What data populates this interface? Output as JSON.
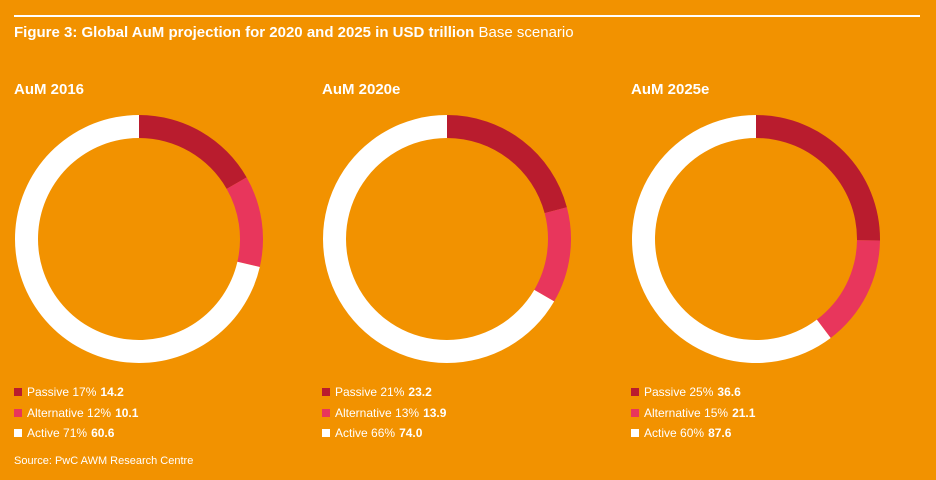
{
  "title": {
    "bold": "Figure 3: Global AuM projection for 2020 and 2025 in USD trillion",
    "regular": "Base scenario"
  },
  "source": "Source: PwC AWM Research Centre",
  "colors": {
    "background": "#F29200",
    "passive": "#B91C2E",
    "alternative": "#E8365C",
    "active": "#FFFFFF"
  },
  "chart_data": [
    {
      "type": "pie",
      "title": "AuM 2016",
      "slices": [
        {
          "name": "Passive",
          "percent": "17%",
          "value": 14.2
        },
        {
          "name": "Alternative",
          "percent": "12%",
          "value": 10.1
        },
        {
          "name": "Active",
          "percent": "71%",
          "value": 60.6
        }
      ]
    },
    {
      "type": "pie",
      "title": "AuM 2020e",
      "slices": [
        {
          "name": "Passive",
          "percent": "21%",
          "value": 23.2
        },
        {
          "name": "Alternative",
          "percent": "13%",
          "value": 13.9
        },
        {
          "name": "Active",
          "percent": "66%",
          "value": 74.0
        }
      ]
    },
    {
      "type": "pie",
      "title": "AuM 2025e",
      "slices": [
        {
          "name": "Passive",
          "percent": "25%",
          "value": 36.6
        },
        {
          "name": "Alternative",
          "percent": "15%",
          "value": 21.1
        },
        {
          "name": "Active",
          "percent": "60%",
          "value": 87.6
        }
      ]
    }
  ]
}
